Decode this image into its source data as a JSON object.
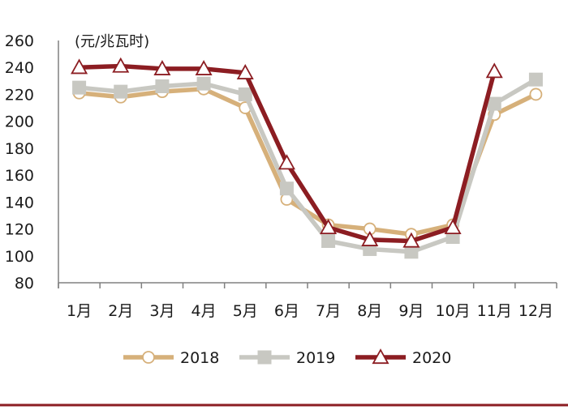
{
  "chart_data": {
    "type": "line",
    "title": "",
    "xlabel": "",
    "ylabel": "",
    "unit_label": "(元/兆瓦时)",
    "categories": [
      "1月",
      "2月",
      "3月",
      "4月",
      "5月",
      "6月",
      "7月",
      "8月",
      "9月",
      "10月",
      "11月",
      "12月"
    ],
    "ylim": [
      80,
      260
    ],
    "yticks": [
      80,
      100,
      120,
      140,
      160,
      180,
      200,
      220,
      240,
      260
    ],
    "grid": false,
    "legend_position": "bottom",
    "series": [
      {
        "name": "2018",
        "color": "#d6b07a",
        "marker": "circle",
        "values": [
          221,
          218,
          222,
          224,
          210,
          142,
          123,
          120,
          116,
          123,
          205,
          220
        ]
      },
      {
        "name": "2019",
        "color": "#c8c8c2",
        "marker": "square",
        "values": [
          225,
          222,
          226,
          228,
          220,
          150,
          111,
          105,
          103,
          114,
          213,
          231
        ]
      },
      {
        "name": "2020",
        "color": "#8c1d22",
        "marker": "triangle",
        "values": [
          240,
          241,
          239,
          239,
          236,
          169,
          121,
          112,
          111,
          121,
          237,
          null
        ]
      }
    ]
  }
}
